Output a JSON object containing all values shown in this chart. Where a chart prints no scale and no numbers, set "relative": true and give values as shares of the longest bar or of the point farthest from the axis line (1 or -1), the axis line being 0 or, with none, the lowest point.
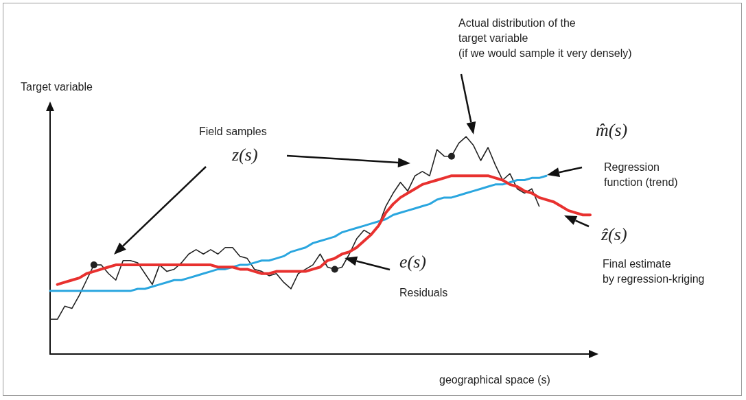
{
  "chart_data": {
    "type": "line",
    "relative": true,
    "xlabel": "geographical space (s)",
    "ylabel": "Target variable",
    "categories": [
      null,
      null,
      null,
      null,
      null,
      null,
      null,
      null,
      null,
      null,
      null,
      null,
      null,
      null,
      null,
      null,
      null,
      null,
      null,
      null,
      null,
      null,
      null,
      null,
      null,
      null,
      null,
      null,
      null,
      null,
      null,
      null,
      null,
      null,
      null,
      null,
      null,
      null,
      null,
      null,
      null,
      null,
      null,
      null,
      null,
      null,
      null,
      null,
      null,
      null,
      null,
      null,
      null,
      null,
      null,
      null,
      null,
      null,
      null,
      null,
      null,
      null,
      null,
      null,
      null,
      null,
      null,
      null,
      null,
      null,
      null,
      null,
      null,
      null,
      null
    ],
    "series": [
      {
        "color": "#222222",
        "values": [
          0.16,
          0.16,
          0.22,
          0.21,
          0.27,
          0.34,
          0.41,
          0.41,
          0.37,
          0.34,
          0.43,
          0.43,
          0.42,
          0.37,
          0.32,
          0.41,
          0.38,
          0.39,
          0.42,
          0.46,
          0.48,
          0.46,
          0.48,
          0.46,
          0.49,
          0.49,
          0.45,
          0.44,
          0.39,
          0.38,
          0.36,
          0.37,
          0.33,
          0.3,
          0.37,
          0.39,
          0.41,
          0.46,
          0.4,
          0.39,
          0.4,
          0.46,
          0.53,
          0.57,
          0.55,
          0.59,
          0.68,
          0.74,
          0.79,
          0.75,
          0.82,
          0.84,
          0.82,
          0.94,
          0.91,
          0.91,
          0.97,
          1,
          0.96,
          0.89,
          0.95,
          0.87,
          0.8,
          0.83,
          0.76,
          0.74,
          0.76,
          0.68,
          null,
          null,
          null,
          null,
          null,
          null,
          null
        ]
      },
      {
        "color": "#2aa6df",
        "values": [
          0.29,
          0.29,
          0.29,
          0.29,
          0.29,
          0.29,
          0.29,
          0.29,
          0.29,
          0.29,
          0.29,
          0.29,
          0.3,
          0.3,
          0.31,
          0.32,
          0.33,
          0.34,
          0.34,
          0.35,
          0.36,
          0.37,
          0.38,
          0.39,
          0.39,
          0.4,
          0.41,
          0.41,
          0.42,
          0.43,
          0.43,
          0.44,
          0.45,
          0.47,
          0.48,
          0.49,
          0.51,
          0.52,
          0.53,
          0.54,
          0.56,
          0.57,
          0.58,
          0.59,
          0.6,
          0.61,
          0.62,
          0.64,
          0.65,
          0.66,
          0.67,
          0.68,
          0.69,
          0.71,
          0.72,
          0.72,
          0.73,
          0.74,
          0.75,
          0.76,
          0.77,
          0.78,
          0.78,
          0.79,
          0.8,
          0.8,
          0.81,
          0.81,
          0.82,
          null,
          null,
          null,
          null,
          null,
          null
        ]
      },
      {
        "color": "#e8312f",
        "values": [
          null,
          0.32,
          0.33,
          0.34,
          0.35,
          0.37,
          0.38,
          0.39,
          0.4,
          0.41,
          0.41,
          0.41,
          0.41,
          0.41,
          0.41,
          0.41,
          0.41,
          0.41,
          0.41,
          0.41,
          0.41,
          0.41,
          0.41,
          0.4,
          0.4,
          0.4,
          0.39,
          0.39,
          0.38,
          0.37,
          0.37,
          0.38,
          0.38,
          0.38,
          0.38,
          0.38,
          0.39,
          0.4,
          0.43,
          0.44,
          0.46,
          0.47,
          0.49,
          0.52,
          0.55,
          0.59,
          0.65,
          0.69,
          0.72,
          0.74,
          0.76,
          0.78,
          0.79,
          0.8,
          0.81,
          0.82,
          0.82,
          0.82,
          0.82,
          0.82,
          0.82,
          0.81,
          0.8,
          0.78,
          0.77,
          0.75,
          0.74,
          0.72,
          0.71,
          0.7,
          0.68,
          0.66,
          0.65,
          0.64,
          0.64
        ]
      }
    ],
    "marker": "none",
    "line_style": "solid",
    "grid": false,
    "annotations": [
      "Actual distribution of the\ntarget variable\n(if we would sample it very densely)",
      "Field samples",
      "z(s)",
      "m̂(s)",
      "Regression\nfunction (trend)",
      "ẑ(s)",
      "Final estimate\nby regression-kriging",
      "e(s)",
      "Residuals"
    ]
  }
}
